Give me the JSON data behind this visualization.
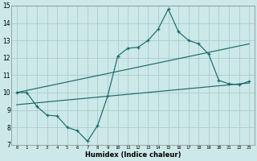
{
  "title": "",
  "xlabel": "Humidex (Indice chaleur)",
  "background_color": "#cce8e8",
  "grid_color": "#aacccc",
  "line_color": "#1a6b6b",
  "xmin": -0.5,
  "xmax": 23.5,
  "ymin": 7,
  "ymax": 15,
  "xticks": [
    0,
    1,
    2,
    3,
    4,
    5,
    6,
    7,
    8,
    9,
    10,
    11,
    12,
    13,
    14,
    15,
    16,
    17,
    18,
    19,
    20,
    21,
    22,
    23
  ],
  "yticks": [
    7,
    8,
    9,
    10,
    11,
    12,
    13,
    14,
    15
  ],
  "wavy_x": [
    0,
    1,
    2,
    3,
    4,
    5,
    6,
    7,
    8,
    9,
    10,
    11,
    12,
    13,
    14,
    15,
    16,
    17,
    18,
    19,
    20,
    21,
    22,
    23
  ],
  "wavy_y": [
    10.0,
    10.0,
    9.2,
    8.7,
    8.65,
    8.0,
    7.8,
    7.2,
    8.1,
    9.8,
    12.1,
    12.55,
    12.6,
    13.0,
    13.65,
    14.8,
    13.5,
    13.0,
    12.8,
    12.2,
    10.7,
    10.5,
    10.45,
    10.65
  ],
  "upper_line_x": [
    0,
    23
  ],
  "upper_line_y": [
    10.0,
    12.8
  ],
  "lower_line_x": [
    0,
    23
  ],
  "lower_line_y": [
    9.3,
    10.55
  ]
}
